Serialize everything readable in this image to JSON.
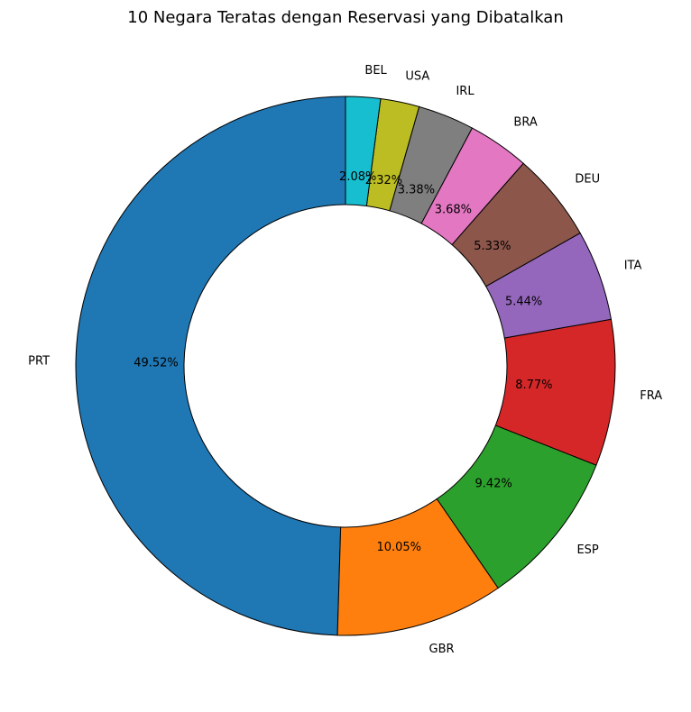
{
  "chart_data": {
    "type": "pie",
    "variant": "donut",
    "title": "10 Negara Teratas dengan Reservasi yang Dibatalkan",
    "start_angle_deg": 90,
    "direction": "counterclockwise",
    "legend": "none",
    "slices": [
      {
        "label": "PRT",
        "value": 49.52,
        "pct_label": "49.52%",
        "color": "#1f77b4"
      },
      {
        "label": "GBR",
        "value": 10.05,
        "pct_label": "10.05%",
        "color": "#ff7f0e"
      },
      {
        "label": "ESP",
        "value": 9.42,
        "pct_label": "9.42%",
        "color": "#2ca02c"
      },
      {
        "label": "FRA",
        "value": 8.77,
        "pct_label": "8.77%",
        "color": "#d62728"
      },
      {
        "label": "ITA",
        "value": 5.44,
        "pct_label": "5.44%",
        "color": "#9467bd"
      },
      {
        "label": "DEU",
        "value": 5.33,
        "pct_label": "5.33%",
        "color": "#8c564b"
      },
      {
        "label": "BRA",
        "value": 3.68,
        "pct_label": "3.68%",
        "color": "#e377c2"
      },
      {
        "label": "IRL",
        "value": 3.38,
        "pct_label": "3.38%",
        "color": "#7f7f7f"
      },
      {
        "label": "USA",
        "value": 2.32,
        "pct_label": "2.32%",
        "color": "#bcbd22"
      },
      {
        "label": "BEL",
        "value": 2.08,
        "pct_label": "2.08%",
        "color": "#17becf"
      }
    ]
  }
}
